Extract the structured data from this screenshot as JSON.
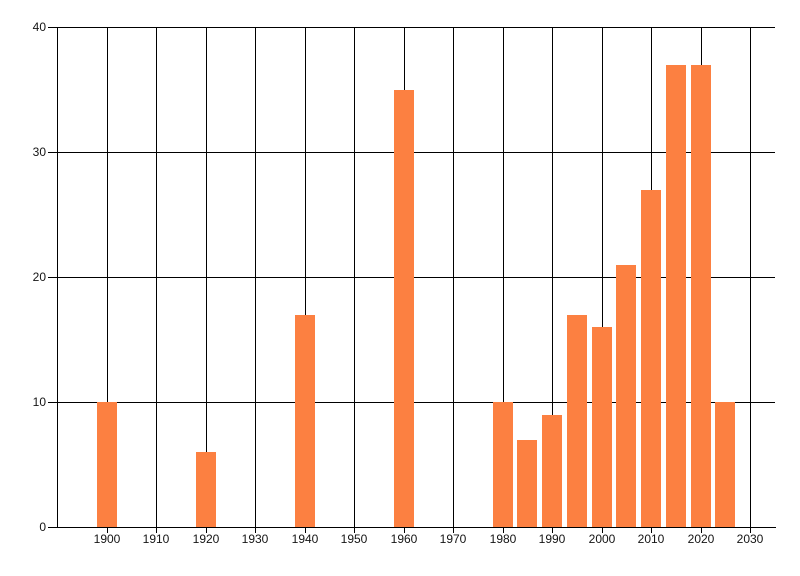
{
  "chart_data": {
    "type": "bar",
    "title": "",
    "xlabel": "",
    "ylabel": "",
    "x": [
      1900,
      1920,
      1940,
      1960,
      1980,
      1985,
      1990,
      1995,
      2000,
      2005,
      2010,
      2015,
      2020,
      2025
    ],
    "values": [
      10,
      6,
      17,
      35,
      10,
      7,
      9,
      17,
      16,
      21,
      27,
      37,
      37,
      10
    ],
    "xlim": [
      1890,
      2035
    ],
    "ylim": [
      0,
      40
    ],
    "x_ticks": [
      1900,
      1910,
      1920,
      1930,
      1940,
      1950,
      1960,
      1970,
      1980,
      1990,
      2000,
      2010,
      2020,
      2030
    ],
    "y_ticks": [
      0,
      10,
      20,
      30,
      40
    ],
    "grid": true,
    "legend": "none",
    "bar_width_years": 4,
    "colors": {
      "bar": "#fc8041",
      "grid": "#000000",
      "axis": "#000000",
      "label": "#141414",
      "background": "#ffffff"
    }
  }
}
